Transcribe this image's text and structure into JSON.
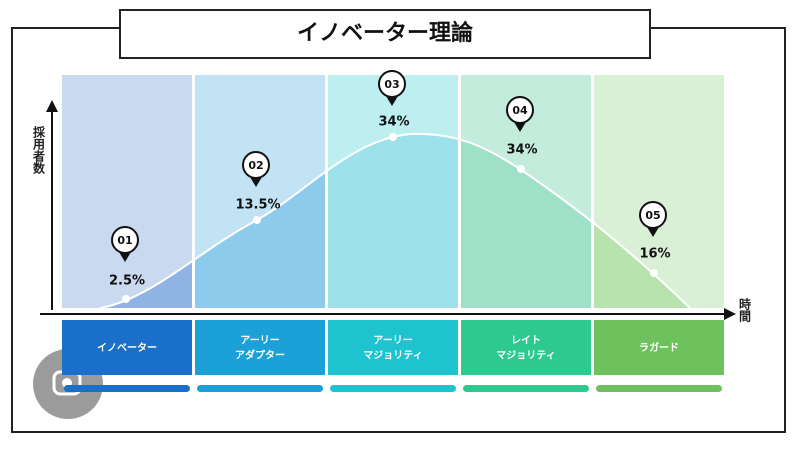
{
  "title": "イノベーター理論",
  "y_axis_label": "採用者数",
  "x_axis_label": "時間",
  "segments": [
    {
      "number": "01",
      "share": "2.5%",
      "name": [
        "イノベーター"
      ]
    },
    {
      "number": "02",
      "share": "13.5%",
      "name": [
        "アーリー",
        "アダプター"
      ]
    },
    {
      "number": "03",
      "share": "34%",
      "name": [
        "アーリー",
        "マジョリティ"
      ]
    },
    {
      "number": "04",
      "share": "34%",
      "name": [
        "レイト",
        "マジョリティ"
      ]
    },
    {
      "number": "05",
      "share": "16%",
      "name": [
        "ラガード"
      ]
    }
  ]
}
